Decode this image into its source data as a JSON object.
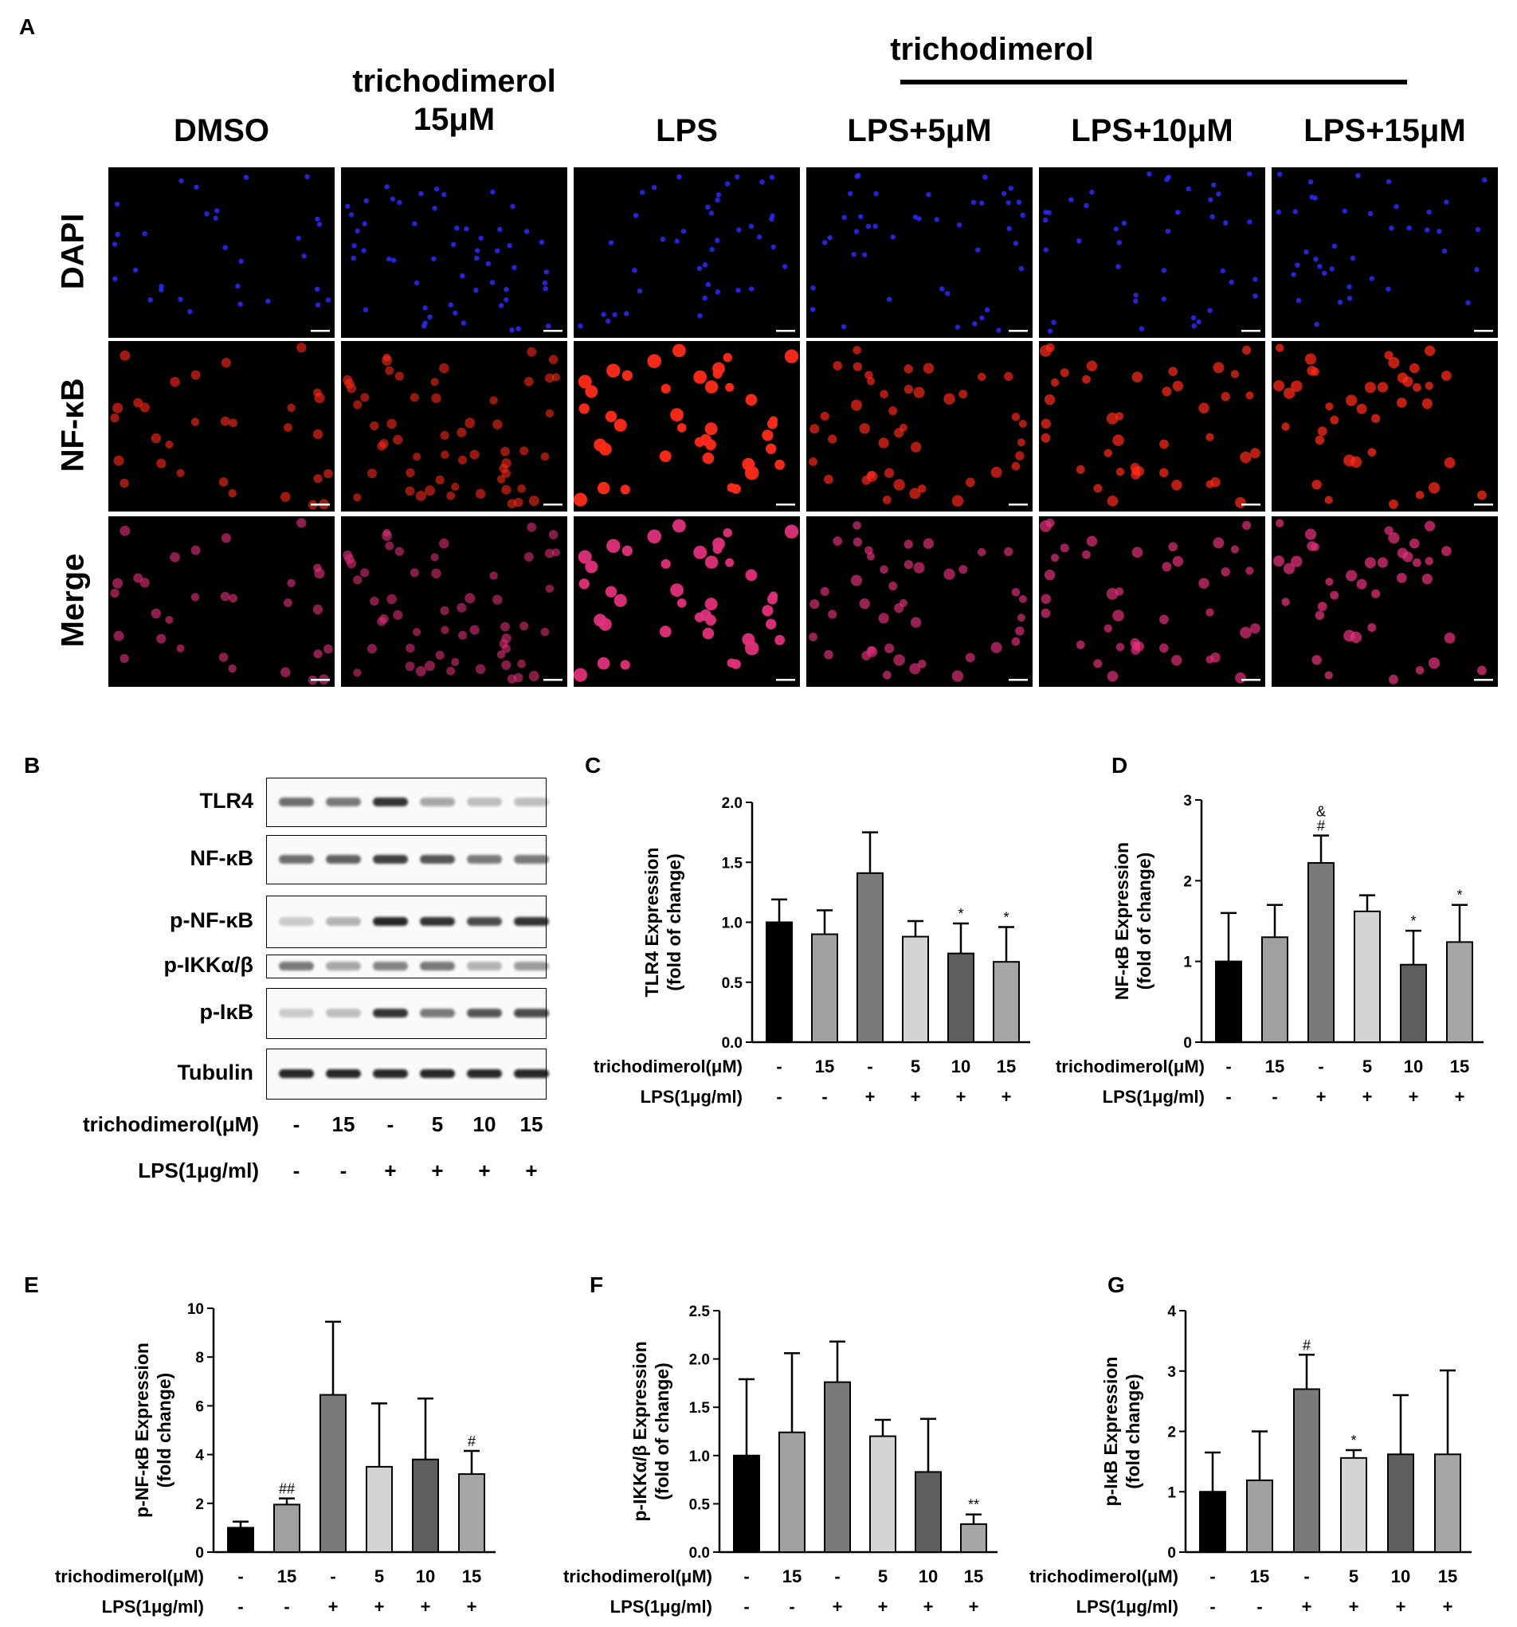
{
  "panelA": {
    "letter": "A",
    "group_label": "trichodimerol",
    "columns": [
      {
        "line1": "DMSO",
        "line2": ""
      },
      {
        "line1": "trichodimerol",
        "line2": "15μM"
      },
      {
        "line1": "LPS",
        "line2": ""
      },
      {
        "line1": "LPS+5μM",
        "line2": ""
      },
      {
        "line1": "LPS+10μM",
        "line2": ""
      },
      {
        "line1": "LPS+15μM",
        "line2": ""
      }
    ],
    "rows": [
      "DAPI",
      "NF-κB",
      "Merge"
    ],
    "colors": {
      "dapi": "#2a2cff",
      "nfkb": "#ff2a1a",
      "merge": "#e0307a"
    }
  },
  "panelB": {
    "letter": "B",
    "proteins": [
      "TLR4",
      "NF-κB",
      "p-NF-κB",
      "p-IKKα/β",
      "p-IκB",
      "Tubulin"
    ],
    "trichodimerol_label": "trichodimerol(μM)",
    "lps_label": "LPS(1μg/ml)",
    "trichodimerol_values": [
      "-",
      "15",
      "-",
      "5",
      "10",
      "15"
    ],
    "lps_values": [
      "-",
      "-",
      "+",
      "+",
      "+",
      "+"
    ]
  },
  "chart_data": [
    {
      "panel": "C",
      "type": "bar",
      "ylabel": "TLR4 Expression\n(fold of change)",
      "ylim": [
        0,
        2.0
      ],
      "yticks": [
        "0.0",
        "0.5",
        "1.0",
        "1.5",
        "2.0"
      ],
      "trichodimerol_label": "trichodimerol(μM)",
      "lps_label": "LPS(1μg/ml)",
      "trichodimerol": [
        "-",
        "15",
        "-",
        "5",
        "10",
        "15"
      ],
      "lps": [
        "-",
        "-",
        "+",
        "+",
        "+",
        "+"
      ],
      "values": [
        1.0,
        0.9,
        1.41,
        0.88,
        0.74,
        0.67
      ],
      "errors": [
        0.19,
        0.2,
        0.34,
        0.13,
        0.25,
        0.29
      ],
      "annotations": [
        "",
        "",
        "",
        "",
        "*",
        "*"
      ],
      "colors": [
        "#000000",
        "#a0a0a0",
        "#7a7a7a",
        "#d4d4d4",
        "#5e5e5e",
        "#a6a6a6"
      ]
    },
    {
      "panel": "D",
      "type": "bar",
      "ylabel": "NF-κB Expression\n(fold of change)",
      "ylim": [
        0,
        3
      ],
      "yticks": [
        "0",
        "1",
        "2",
        "3"
      ],
      "trichodimerol_label": "trichodimerol(μM)",
      "lps_label": "LPS(1μg/ml)",
      "trichodimerol": [
        "-",
        "15",
        "-",
        "5",
        "10",
        "15"
      ],
      "lps": [
        "-",
        "-",
        "+",
        "+",
        "+",
        "+"
      ],
      "values": [
        1.0,
        1.3,
        2.22,
        1.62,
        0.96,
        1.24
      ],
      "errors": [
        0.6,
        0.4,
        0.34,
        0.2,
        0.42,
        0.46
      ],
      "annotations": [
        "",
        "",
        "&\n#",
        "",
        "*",
        "*"
      ],
      "colors": [
        "#000000",
        "#a0a0a0",
        "#7a7a7a",
        "#d4d4d4",
        "#5e5e5e",
        "#a6a6a6"
      ]
    },
    {
      "panel": "E",
      "type": "bar",
      "ylabel": "p-NF-κB Expression\n(fold change)",
      "ylim": [
        0,
        10
      ],
      "yticks": [
        "0",
        "2",
        "4",
        "6",
        "8",
        "10"
      ],
      "trichodimerol_label": "trichodimerol(μM)",
      "lps_label": "LPS(1μg/ml)",
      "trichodimerol": [
        "-",
        "15",
        "-",
        "5",
        "10",
        "15"
      ],
      "lps": [
        "-",
        "-",
        "+",
        "+",
        "+",
        "+"
      ],
      "values": [
        1.0,
        1.95,
        6.45,
        3.5,
        3.8,
        3.2
      ],
      "errors": [
        0.25,
        0.25,
        3.0,
        2.6,
        2.5,
        0.95
      ],
      "annotations": [
        "",
        "##",
        "",
        "",
        "",
        "#"
      ],
      "colors": [
        "#000000",
        "#a0a0a0",
        "#7a7a7a",
        "#d4d4d4",
        "#5e5e5e",
        "#a6a6a6"
      ]
    },
    {
      "panel": "F",
      "type": "bar",
      "ylabel": "p-IKKα/β Expression\n(fold of change)",
      "ylim": [
        0,
        2.5
      ],
      "yticks": [
        "0.0",
        "0.5",
        "1.0",
        "1.5",
        "2.0",
        "2.5"
      ],
      "trichodimerol_label": "trichodimerol(μM)",
      "lps_label": "LPS(1μg/ml)",
      "trichodimerol": [
        "-",
        "15",
        "-",
        "5",
        "10",
        "15"
      ],
      "lps": [
        "-",
        "-",
        "+",
        "+",
        "+",
        "+"
      ],
      "values": [
        1.0,
        1.24,
        1.76,
        1.2,
        0.83,
        0.29
      ],
      "errors": [
        0.79,
        0.82,
        0.42,
        0.17,
        0.55,
        0.1
      ],
      "annotations": [
        "",
        "",
        "",
        "",
        "",
        "**"
      ],
      "colors": [
        "#000000",
        "#a0a0a0",
        "#7a7a7a",
        "#d4d4d4",
        "#5e5e5e",
        "#a6a6a6"
      ]
    },
    {
      "panel": "G",
      "type": "bar",
      "ylabel": "p-IκB Expression\n(fold change)",
      "ylim": [
        0,
        4
      ],
      "yticks": [
        "0",
        "1",
        "2",
        "3",
        "4"
      ],
      "trichodimerol_label": "trichodimerol(μM)",
      "lps_label": "LPS(1μg/ml)",
      "trichodimerol": [
        "-",
        "15",
        "-",
        "5",
        "10",
        "15"
      ],
      "lps": [
        "-",
        "-",
        "+",
        "+",
        "+",
        "+"
      ],
      "values": [
        1.0,
        1.19,
        2.7,
        1.56,
        1.62,
        1.62
      ],
      "errors": [
        0.65,
        0.81,
        0.57,
        0.13,
        0.98,
        1.39
      ],
      "annotations": [
        "",
        "",
        "#",
        "*",
        "",
        ""
      ],
      "colors": [
        "#000000",
        "#a0a0a0",
        "#7a7a7a",
        "#d4d4d4",
        "#5e5e5e",
        "#a6a6a6"
      ]
    }
  ]
}
